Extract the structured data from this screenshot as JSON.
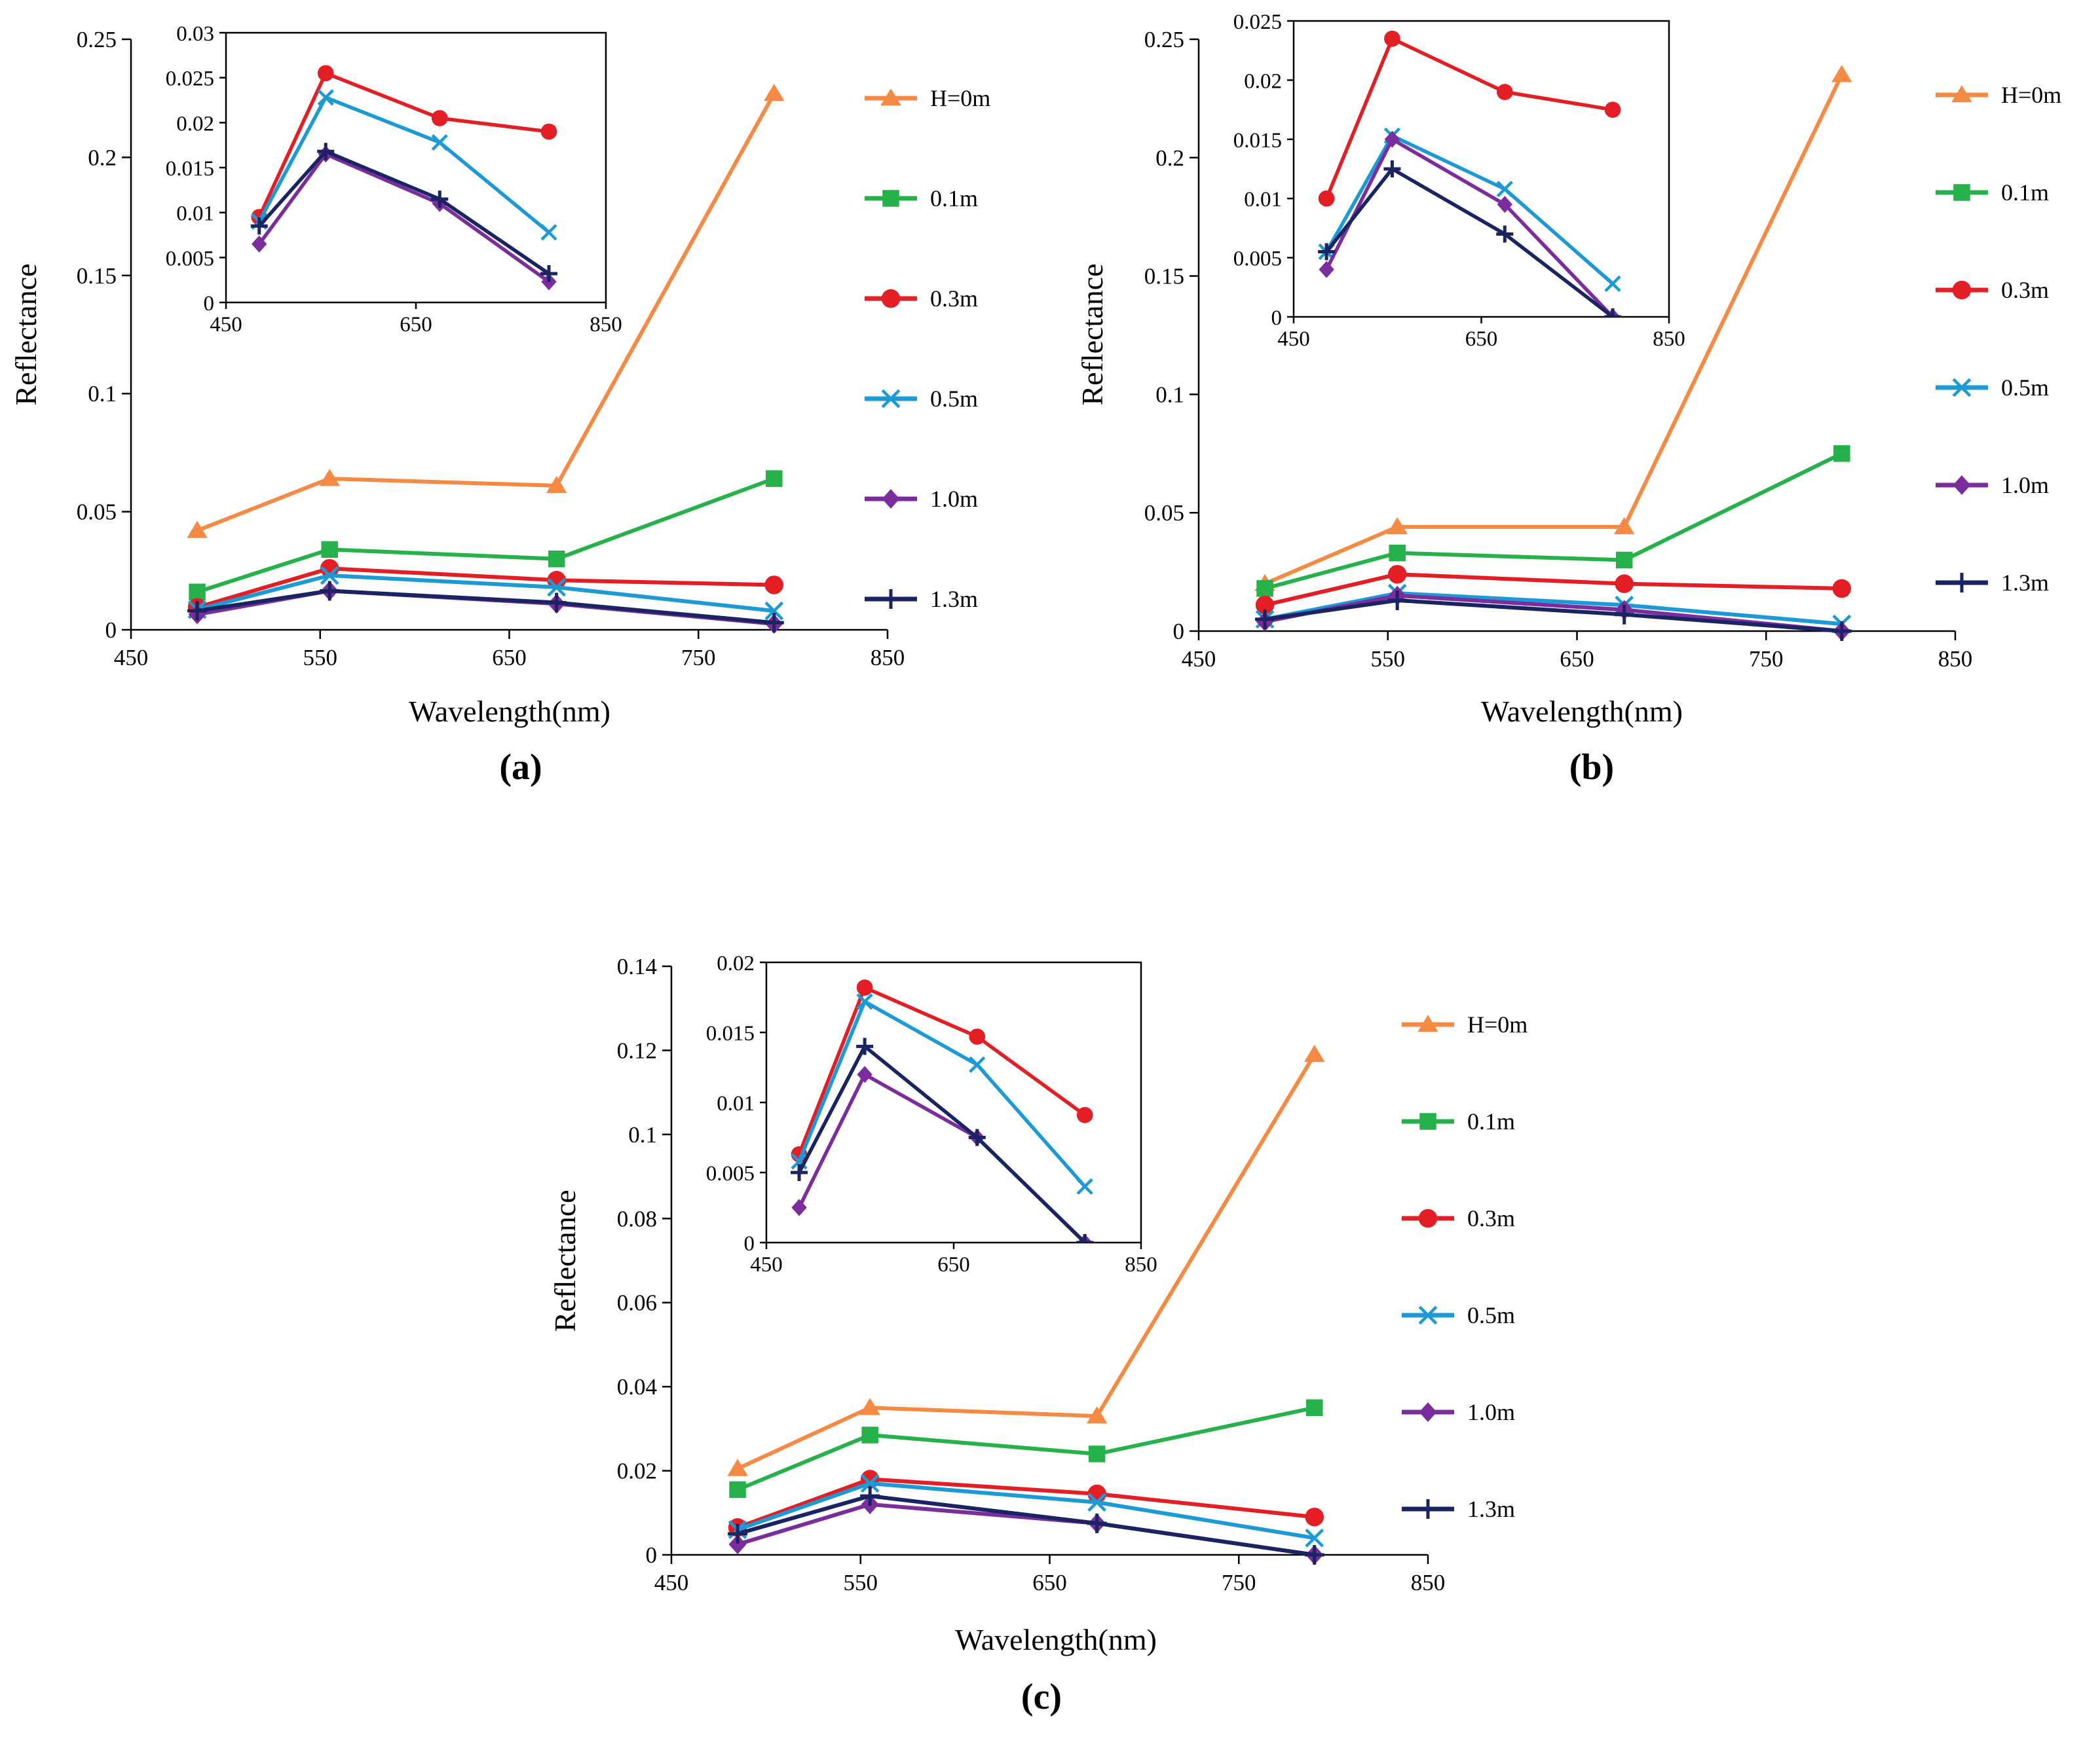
{
  "figure": {
    "legend": [
      {
        "name": "H=0m",
        "color": "#f58a45",
        "marker": "triangle"
      },
      {
        "name": "0.1m",
        "color": "#26b14b",
        "marker": "square"
      },
      {
        "name": "0.3m",
        "color": "#e31e25",
        "marker": "circle"
      },
      {
        "name": "0.5m",
        "color": "#1c9ad6",
        "marker": "x"
      },
      {
        "name": "1.0m",
        "color": "#7b2d9e",
        "marker": "diamond"
      },
      {
        "name": "1.3m",
        "color": "#1a2463",
        "marker": "plus"
      }
    ]
  },
  "chart_data": [
    {
      "type": "line",
      "panel": "(a)",
      "title": "(a)",
      "xlabel": "Wavelength(nm)",
      "ylabel": "Reflectance",
      "xlim": [
        450,
        850
      ],
      "ylim": [
        0,
        0.25
      ],
      "xticks": [
        "450",
        "550",
        "650",
        "750",
        "850"
      ],
      "yticks": [
        "0",
        "0.05",
        "0.1",
        "0.15",
        "0.2",
        "0.25"
      ],
      "x": [
        485,
        555,
        675,
        790
      ],
      "series": [
        {
          "name": "H=0m",
          "values": [
            0.042,
            0.064,
            0.061,
            0.227
          ]
        },
        {
          "name": "0.1m",
          "values": [
            0.016,
            0.034,
            0.03,
            0.064
          ]
        },
        {
          "name": "0.3m",
          "values": [
            0.0095,
            0.026,
            0.021,
            0.019
          ]
        },
        {
          "name": "0.5m",
          "values": [
            0.0085,
            0.023,
            0.018,
            0.008
          ]
        },
        {
          "name": "1.0m",
          "values": [
            0.0065,
            0.0165,
            0.011,
            0.0025
          ]
        },
        {
          "name": "1.3m",
          "values": [
            0.008,
            0.0165,
            0.0115,
            0.003
          ]
        }
      ],
      "inset": {
        "xlim": [
          450,
          850
        ],
        "ylim": [
          0,
          0.03
        ],
        "xticks": [
          "450",
          "650",
          "850"
        ],
        "yticks": [
          "0",
          "0.005",
          "0.01",
          "0.015",
          "0.02",
          "0.025",
          "0.03"
        ],
        "x": [
          485,
          555,
          675,
          790
        ],
        "series": [
          {
            "name": "0.3m",
            "values": [
              0.0095,
              0.0255,
              0.0205,
              0.019
            ]
          },
          {
            "name": "0.5m",
            "values": [
              0.009,
              0.0228,
              0.0178,
              0.0078
            ]
          },
          {
            "name": "1.0m",
            "values": [
              0.0065,
              0.0165,
              0.011,
              0.0023
            ]
          },
          {
            "name": "1.3m",
            "values": [
              0.0085,
              0.0168,
              0.0115,
              0.0032
            ]
          }
        ]
      }
    },
    {
      "type": "line",
      "panel": "(b)",
      "title": "(b)",
      "xlabel": "Wavelength(nm)",
      "ylabel": "Reflectance",
      "xlim": [
        450,
        850
      ],
      "ylim": [
        0,
        0.25
      ],
      "xticks": [
        "450",
        "550",
        "650",
        "750",
        "850"
      ],
      "yticks": [
        "0",
        "0.05",
        "0.1",
        "0.15",
        "0.2",
        "0.25"
      ],
      "x": [
        485,
        555,
        675,
        790
      ],
      "series": [
        {
          "name": "H=0m",
          "values": [
            0.02,
            0.044,
            0.044,
            0.235
          ]
        },
        {
          "name": "0.1m",
          "values": [
            0.018,
            0.033,
            0.03,
            0.075
          ]
        },
        {
          "name": "0.3m",
          "values": [
            0.011,
            0.024,
            0.02,
            0.018
          ]
        },
        {
          "name": "0.5m",
          "values": [
            0.005,
            0.016,
            0.011,
            0.003
          ]
        },
        {
          "name": "1.0m",
          "values": [
            0.004,
            0.015,
            0.009,
            0.0
          ]
        },
        {
          "name": "1.3m",
          "values": [
            0.005,
            0.013,
            0.007,
            0.0
          ]
        }
      ],
      "inset": {
        "xlim": [
          450,
          850
        ],
        "ylim": [
          0,
          0.025
        ],
        "xticks": [
          "450",
          "650",
          "850"
        ],
        "yticks": [
          "0",
          "0.005",
          "0.01",
          "0.015",
          "0.02",
          "0.025"
        ],
        "x": [
          485,
          555,
          675,
          790
        ],
        "series": [
          {
            "name": "0.3m",
            "values": [
              0.01,
              0.0235,
              0.019,
              0.0175
            ]
          },
          {
            "name": "0.5m",
            "values": [
              0.0055,
              0.0153,
              0.0108,
              0.0028
            ]
          },
          {
            "name": "1.0m",
            "values": [
              0.004,
              0.015,
              0.0095,
              0.0
            ]
          },
          {
            "name": "1.3m",
            "values": [
              0.0055,
              0.0125,
              0.007,
              0.0
            ]
          }
        ]
      }
    },
    {
      "type": "line",
      "panel": "(c)",
      "title": "(c)",
      "xlabel": "Wavelength(nm)",
      "ylabel": "Reflectance",
      "xlim": [
        450,
        850
      ],
      "ylim": [
        0,
        0.14
      ],
      "xticks": [
        "450",
        "550",
        "650",
        "750",
        "850"
      ],
      "yticks": [
        "0",
        "0.02",
        "0.04",
        "0.06",
        "0.08",
        "0.1",
        "0.12",
        "0.14"
      ],
      "x": [
        485,
        555,
        675,
        790
      ],
      "series": [
        {
          "name": "H=0m",
          "values": [
            0.0205,
            0.035,
            0.033,
            0.119
          ]
        },
        {
          "name": "0.1m",
          "values": [
            0.0155,
            0.0285,
            0.024,
            0.035
          ]
        },
        {
          "name": "0.3m",
          "values": [
            0.0065,
            0.018,
            0.0145,
            0.009
          ]
        },
        {
          "name": "0.5m",
          "values": [
            0.006,
            0.017,
            0.0125,
            0.004
          ]
        },
        {
          "name": "1.0m",
          "values": [
            0.0025,
            0.012,
            0.0075,
            0.0
          ]
        },
        {
          "name": "1.3m",
          "values": [
            0.005,
            0.014,
            0.0075,
            0.0
          ]
        }
      ],
      "inset": {
        "xlim": [
          450,
          850
        ],
        "ylim": [
          0,
          0.02
        ],
        "xticks": [
          "450",
          "650",
          "850"
        ],
        "yticks": [
          "0",
          "0.005",
          "0.01",
          "0.015",
          "0.02"
        ],
        "x": [
          485,
          555,
          675,
          790
        ],
        "series": [
          {
            "name": "0.3m",
            "values": [
              0.0063,
              0.0182,
              0.0147,
              0.0091
            ]
          },
          {
            "name": "0.5m",
            "values": [
              0.0058,
              0.0172,
              0.0127,
              0.004
            ]
          },
          {
            "name": "1.0m",
            "values": [
              0.0025,
              0.012,
              0.0075,
              0.0
            ]
          },
          {
            "name": "1.3m",
            "values": [
              0.005,
              0.014,
              0.0075,
              0.0
            ]
          }
        ]
      }
    }
  ]
}
